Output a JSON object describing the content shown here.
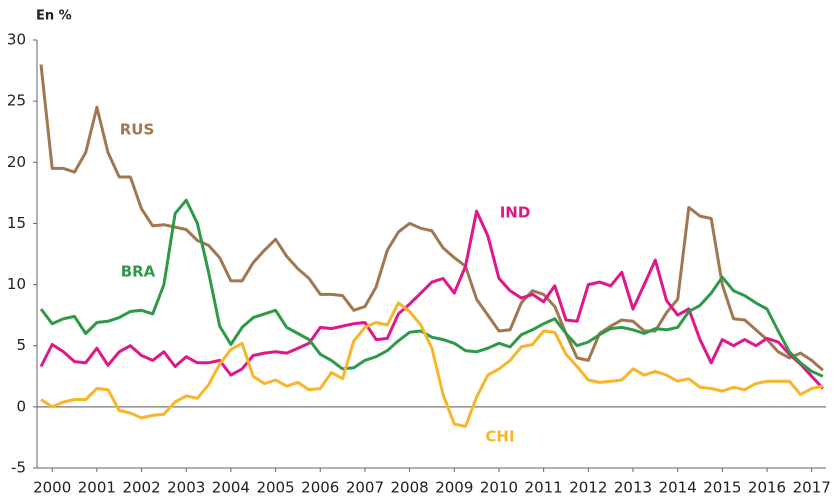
{
  "chart_data": {
    "type": "line",
    "ylabel": "En %",
    "xlim": [
      1999.66,
      2017.32
    ],
    "ylim": [
      -5,
      30
    ],
    "yticks": [
      -5,
      0,
      5,
      10,
      15,
      20,
      25,
      30
    ],
    "xticks": [
      2000,
      2001,
      2002,
      2003,
      2004,
      2005,
      2006,
      2007,
      2008,
      2009,
      2010,
      2011,
      2012,
      2013,
      2014,
      2015,
      2016,
      2017
    ],
    "x": [
      1999.75,
      2000,
      2000.25,
      2000.5,
      2000.75,
      2001,
      2001.25,
      2001.5,
      2001.75,
      2002,
      2002.25,
      2002.5,
      2002.75,
      2003,
      2003.25,
      2003.5,
      2003.75,
      2004,
      2004.25,
      2004.5,
      2004.75,
      2005,
      2005.25,
      2005.5,
      2005.75,
      2006,
      2006.25,
      2006.5,
      2006.75,
      2007,
      2007.25,
      2007.5,
      2007.75,
      2008,
      2008.25,
      2008.5,
      2008.75,
      2009,
      2009.25,
      2009.5,
      2009.75,
      2010,
      2010.25,
      2010.5,
      2010.75,
      2011,
      2011.25,
      2011.5,
      2011.75,
      2012,
      2012.25,
      2012.5,
      2012.75,
      2013,
      2013.25,
      2013.5,
      2013.75,
      2014,
      2014.25,
      2014.5,
      2014.75,
      2015,
      2015.25,
      2015.5,
      2015.75,
      2016,
      2016.25,
      2016.5,
      2016.75,
      2017,
      2017.25
    ],
    "series": [
      {
        "name": "RUS",
        "color": "#a07850",
        "values": [
          28,
          19.5,
          19.5,
          19.2,
          20.8,
          24.5,
          20.8,
          18.8,
          18.8,
          16.2,
          14.8,
          14.9,
          14.7,
          14.5,
          13.6,
          13.2,
          12.2,
          10.3,
          10.3,
          11.8,
          12.8,
          13.7,
          12.3,
          11.3,
          10.5,
          9.2,
          9.2,
          9.1,
          7.9,
          8.2,
          9.8,
          12.8,
          14.3,
          15,
          14.6,
          14.4,
          13,
          12.2,
          11.5,
          8.8,
          7.5,
          6.2,
          6.3,
          8.5,
          9.5,
          9.2,
          8.2,
          6,
          4,
          3.8,
          6,
          6.6,
          7.1,
          7,
          6.2,
          6.2,
          7.7,
          8.8,
          16.3,
          15.6,
          15.4,
          10,
          7.2,
          7.1,
          6.3,
          5.5,
          4.5,
          4,
          4.4,
          3.8,
          3
        ]
      },
      {
        "name": "IND",
        "color": "#e0168a",
        "values": [
          3.3,
          5.1,
          4.5,
          3.7,
          3.6,
          4.8,
          3.4,
          4.5,
          5,
          4.2,
          3.8,
          4.5,
          3.3,
          4.1,
          3.6,
          3.6,
          3.8,
          2.6,
          3.1,
          4.2,
          4.4,
          4.5,
          4.4,
          4.8,
          5.2,
          6.5,
          6.4,
          6.6,
          6.8,
          6.9,
          5.5,
          5.6,
          7.6,
          8.4,
          9.3,
          10.2,
          10.5,
          9.3,
          11.5,
          16,
          14,
          10.5,
          9.5,
          8.9,
          9.2,
          8.6,
          9.9,
          7.1,
          7,
          10,
          10.2,
          9.9,
          11,
          8,
          10,
          12,
          8.7,
          7.5,
          8,
          5.5,
          3.6,
          5.5,
          5,
          5.5,
          5,
          5.6,
          5.3,
          4.3,
          3.5,
          2.5,
          1.5
        ]
      },
      {
        "name": "BRA",
        "color": "#2e9a47",
        "values": [
          8,
          6.8,
          7.2,
          7.4,
          6,
          6.9,
          7,
          7.3,
          7.8,
          7.9,
          7.6,
          10,
          15.8,
          16.9,
          15,
          11,
          6.6,
          5.1,
          6.5,
          7.3,
          7.6,
          7.9,
          6.5,
          6,
          5.5,
          4.3,
          3.8,
          3.1,
          3.2,
          3.8,
          4.1,
          4.6,
          5.4,
          6.1,
          6.2,
          5.7,
          5.5,
          5.2,
          4.6,
          4.5,
          4.8,
          5.2,
          4.9,
          5.9,
          6.3,
          6.8,
          7.2,
          6,
          5,
          5.3,
          5.9,
          6.4,
          6.5,
          6.3,
          6,
          6.4,
          6.3,
          6.5,
          7.8,
          8.3,
          9.3,
          10.6,
          9.5,
          9.1,
          8.5,
          8,
          6.2,
          4.5,
          3.6,
          2.9,
          2.5
        ]
      },
      {
        "name": "CHI",
        "color": "#f7b52a",
        "values": [
          0.6,
          0,
          0.4,
          0.6,
          0.6,
          1.5,
          1.4,
          -0.3,
          -0.5,
          -0.9,
          -0.7,
          -0.6,
          0.4,
          0.9,
          0.7,
          1.8,
          3.5,
          4.7,
          5.2,
          2.5,
          1.9,
          2.2,
          1.7,
          2,
          1.4,
          1.5,
          2.8,
          2.3,
          5.4,
          6.5,
          6.9,
          6.7,
          8.5,
          7.8,
          6.7,
          4.8,
          1,
          -1.4,
          -1.6,
          0.8,
          2.6,
          3.1,
          3.8,
          4.9,
          5.1,
          6.2,
          6.1,
          4.3,
          3.3,
          2.2,
          2,
          2.1,
          2.2,
          3.1,
          2.6,
          2.9,
          2.6,
          2.1,
          2.3,
          1.6,
          1.5,
          1.3,
          1.6,
          1.4,
          1.9,
          2.1,
          2.1,
          2.1,
          1,
          1.5,
          1.7
        ]
      }
    ]
  }
}
